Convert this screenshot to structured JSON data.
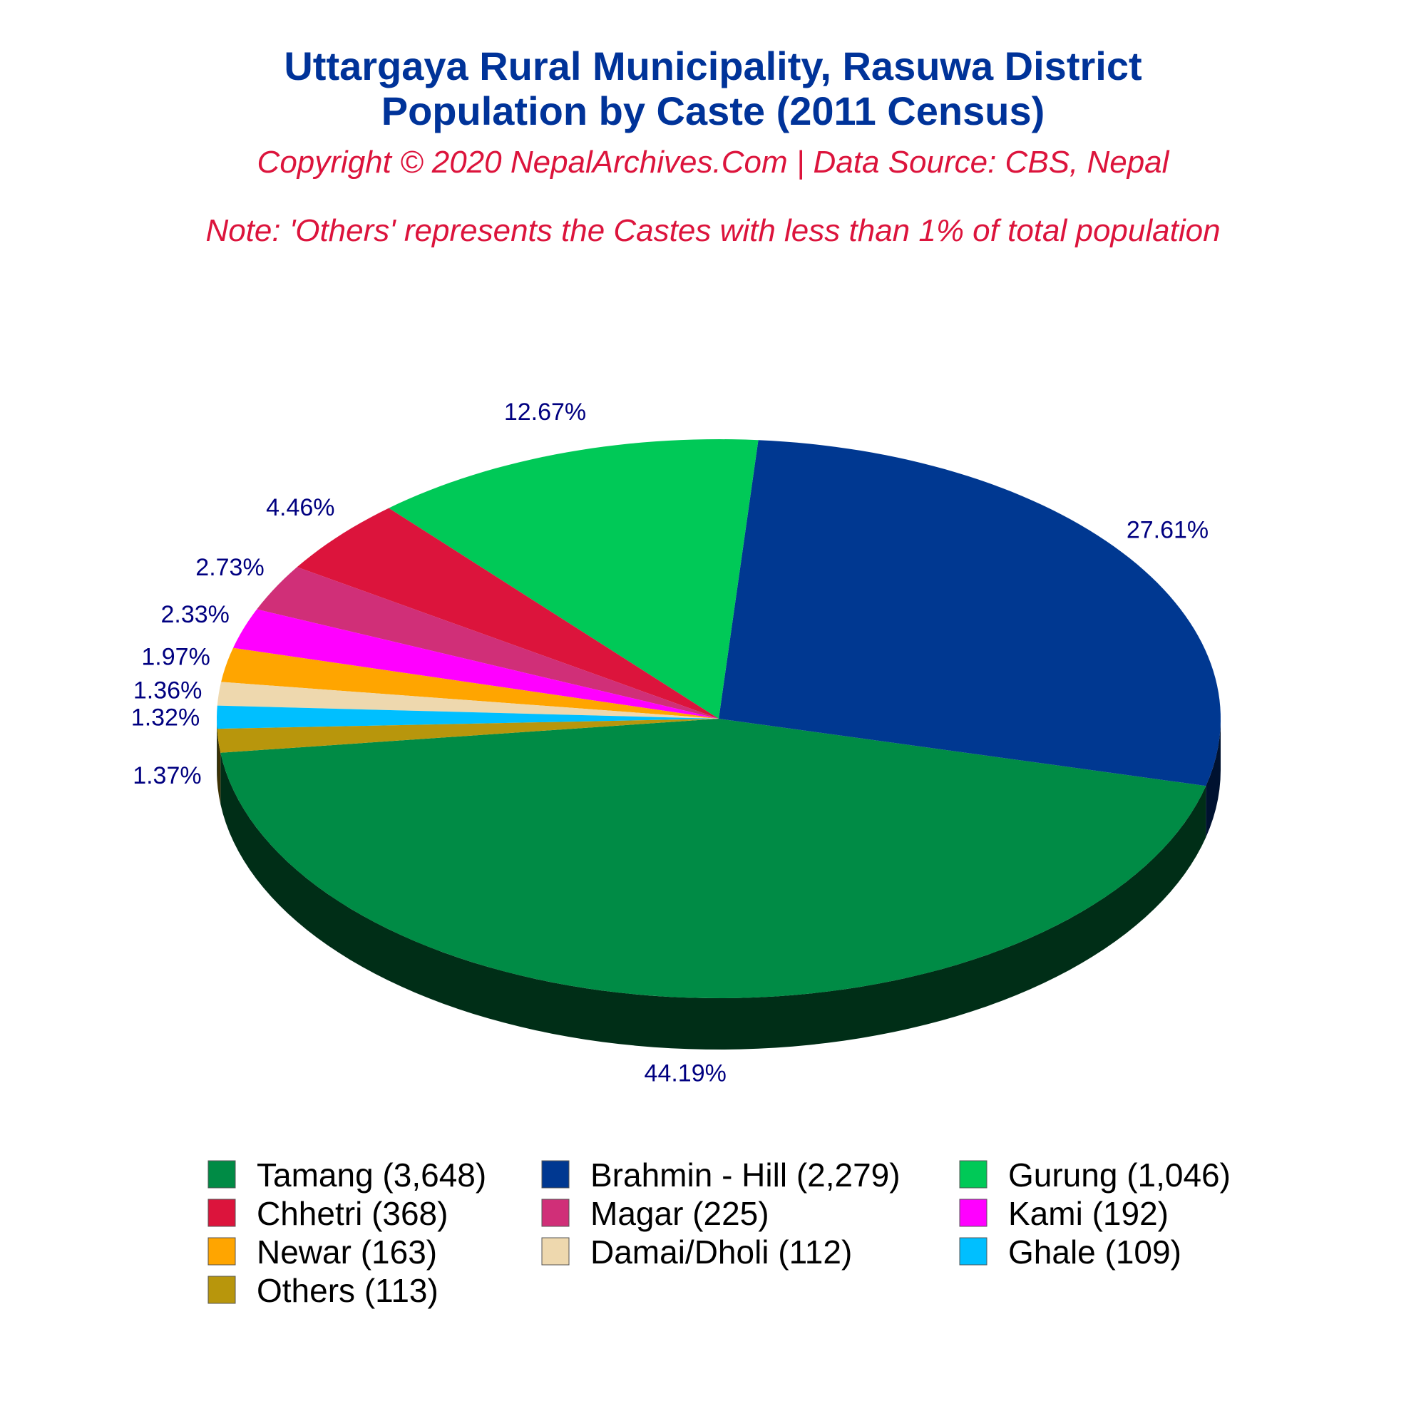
{
  "header": {
    "title_line1": "Uttargaya Rural Municipality, Rasuwa District",
    "title_line2": "Population by Caste (2011 Census)",
    "copyright": "Copyright © 2020 NepalArchives.Com | Data Source: CBS, Nepal",
    "note": "Note: 'Others' represents the Castes with less than 1% of total population"
  },
  "chart_data": {
    "type": "pie",
    "title": "Uttargaya Rural Municipality, Rasuwa District Population by Caste (2011 Census)",
    "style": "3d",
    "slices": [
      {
        "name": "Tamang",
        "value": 3648,
        "percent": 44.19,
        "label": "44.19%",
        "legend": "Tamang (3,648)",
        "color": "#008b45"
      },
      {
        "name": "Brahmin - Hill",
        "value": 2279,
        "percent": 27.61,
        "label": "27.61%",
        "legend": "Brahmin - Hill (2,279)",
        "color": "#003891"
      },
      {
        "name": "Gurung",
        "value": 1046,
        "percent": 12.67,
        "label": "12.67%",
        "legend": "Gurung (1,046)",
        "color": "#00c957"
      },
      {
        "name": "Chhetri",
        "value": 368,
        "percent": 4.46,
        "label": "4.46%",
        "legend": "Chhetri (368)",
        "color": "#dc143c"
      },
      {
        "name": "Magar",
        "value": 225,
        "percent": 2.73,
        "label": "2.73%",
        "legend": "Magar (225)",
        "color": "#d02f78"
      },
      {
        "name": "Kami",
        "value": 192,
        "percent": 2.33,
        "label": "2.33%",
        "legend": "Kami (192)",
        "color": "#ff00ff"
      },
      {
        "name": "Newar",
        "value": 163,
        "percent": 1.97,
        "label": "1.97%",
        "legend": "Newar (163)",
        "color": "#ffa500"
      },
      {
        "name": "Damai/Dholi",
        "value": 112,
        "percent": 1.36,
        "label": "1.36%",
        "legend": "Damai/Dholi (112)",
        "color": "#eed8ae"
      },
      {
        "name": "Ghale",
        "value": 109,
        "percent": 1.32,
        "label": "1.32%",
        "legend": "Ghale (109)",
        "color": "#00bfff"
      },
      {
        "name": "Others",
        "value": 113,
        "percent": 1.37,
        "label": "1.37%",
        "legend": "Others (113)",
        "color": "#b8960c"
      }
    ],
    "legend_position": "bottom"
  }
}
